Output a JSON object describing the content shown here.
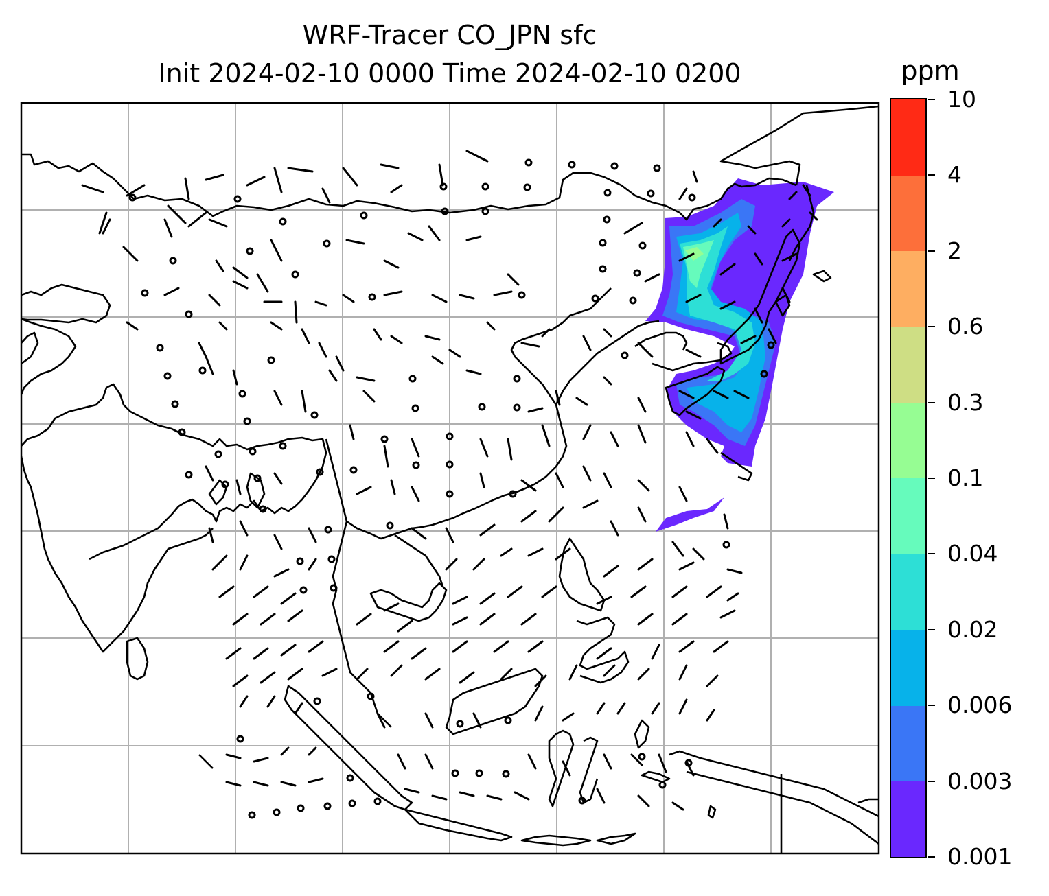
{
  "title_line1": "WRF-Tracer CO_JPN sfc",
  "title_line2": "Init 2024-02-10 0000 Time 2024-02-10 0200",
  "colorbar": {
    "unit": "ppm",
    "levels": [
      "0.001",
      "0.003",
      "0.006",
      "0.02",
      "0.04",
      "0.1",
      "0.3",
      "0.6",
      "2",
      "4",
      "10"
    ],
    "colors": [
      "#6a28fe",
      "#3a76f6",
      "#07b2ea",
      "#2ddfd6",
      "#66fbbc",
      "#96fd93",
      "#cede84",
      "#feae61",
      "#fd6f3a",
      "#ff2a15"
    ]
  },
  "map": {
    "background": "#ffffff",
    "gridline_color": "#b0b0b0",
    "coastline_color": "#000000",
    "plume_region": "Japan / Sea of Japan",
    "wind_barbs": true
  }
}
